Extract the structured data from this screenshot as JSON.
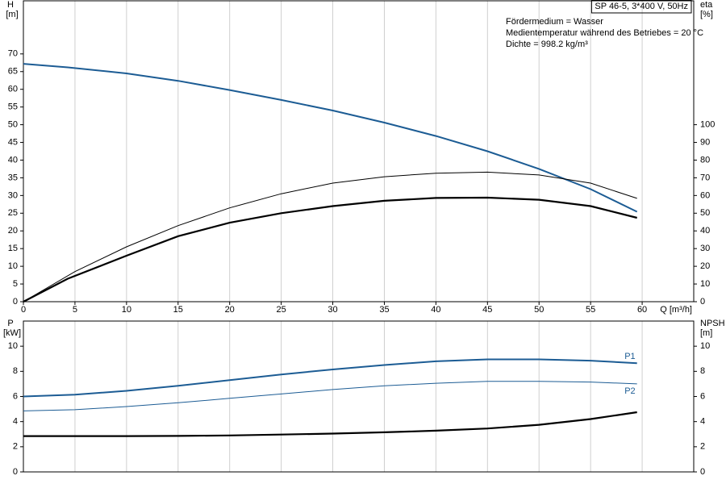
{
  "chart_data": [
    {
      "type": "line",
      "x_label": "Q [m³/h]",
      "y_label": "H",
      "y_unit": "[m]",
      "y2_label": "eta",
      "y2_unit": "[%]",
      "title": "SP 46-5, 3*400 V, 50Hz",
      "annotations": [
        "Fördermedium = Wasser",
        "Medientemperatur während des Betriebes = 20 °C",
        "Dichte = 998.2 kg/m³"
      ],
      "xlim": [
        0,
        65
      ],
      "xticks": [
        0,
        5,
        10,
        15,
        20,
        25,
        30,
        35,
        40,
        45,
        50,
        55,
        60
      ],
      "ylim": [
        0,
        85
      ],
      "yticks": [
        0,
        5,
        10,
        15,
        20,
        25,
        30,
        35,
        40,
        45,
        50,
        55,
        60,
        65,
        70
      ],
      "y2lim": [
        0,
        170
      ],
      "y2ticks": [
        0,
        10,
        20,
        30,
        40,
        50,
        60,
        70,
        80,
        90,
        100
      ],
      "grid": "x",
      "series": [
        {
          "color": "#1c5c94",
          "width": 2,
          "x": [
            0,
            4.3,
            10,
            15,
            20,
            25,
            30,
            35,
            40,
            45,
            50,
            55,
            59.5
          ],
          "values": [
            67.2,
            66.2,
            64.5,
            62.4,
            59.8,
            57,
            54,
            50.6,
            46.8,
            42.5,
            37.5,
            31.8,
            25.4
          ]
        },
        {
          "color": "#000000",
          "width": 1,
          "axis": "y2",
          "x": [
            0,
            5,
            10,
            15,
            20,
            25,
            30,
            35,
            40,
            45,
            50,
            55,
            59.5
          ],
          "values": [
            0,
            17,
            31,
            43,
            53,
            61,
            67,
            70.6,
            72.6,
            73.2,
            71.6,
            67,
            58.4
          ]
        },
        {
          "color": "#000000",
          "width": 2.2,
          "axis": "y2",
          "x": [
            0,
            4.3,
            10,
            15,
            20,
            25,
            30,
            35,
            40,
            45,
            50,
            55,
            59.5
          ],
          "values": [
            0,
            13,
            26,
            37,
            44.6,
            50,
            54,
            57,
            58.6,
            58.8,
            57.6,
            54,
            47.4
          ]
        }
      ]
    },
    {
      "type": "line",
      "y_label": "P",
      "y_unit": "[kW]",
      "y2_label": "NPSH",
      "y2_unit": "[m]",
      "xlim": [
        0,
        65
      ],
      "ylim": [
        0,
        12
      ],
      "yticks": [
        0,
        2,
        4,
        6,
        8,
        10
      ],
      "y2lim": [
        0,
        12
      ],
      "y2ticks": [
        0,
        2,
        4,
        6,
        8,
        10
      ],
      "grid": "x",
      "series": [
        {
          "name": "P1",
          "color": "#1c5c94",
          "width": 2,
          "x": [
            0,
            5,
            10,
            15,
            20,
            25,
            30,
            35,
            40,
            45,
            50,
            55,
            59.5
          ],
          "values": [
            6.0,
            6.15,
            6.45,
            6.85,
            7.3,
            7.75,
            8.15,
            8.5,
            8.8,
            8.95,
            8.95,
            8.85,
            8.65
          ]
        },
        {
          "name": "P2",
          "color": "#1c5c94",
          "width": 1,
          "x": [
            0,
            5,
            10,
            15,
            20,
            25,
            30,
            35,
            40,
            45,
            50,
            55,
            59.5
          ],
          "values": [
            4.85,
            4.95,
            5.2,
            5.5,
            5.85,
            6.2,
            6.55,
            6.85,
            7.05,
            7.2,
            7.2,
            7.15,
            7.0
          ]
        },
        {
          "color": "#000000",
          "width": 2.2,
          "axis": "y2",
          "x": [
            0,
            5,
            10,
            15,
            20,
            25,
            30,
            35,
            40,
            45,
            50,
            55,
            59.5
          ],
          "values": [
            2.85,
            2.85,
            2.85,
            2.86,
            2.9,
            2.97,
            3.05,
            3.15,
            3.28,
            3.45,
            3.75,
            4.2,
            4.75
          ]
        }
      ]
    }
  ]
}
